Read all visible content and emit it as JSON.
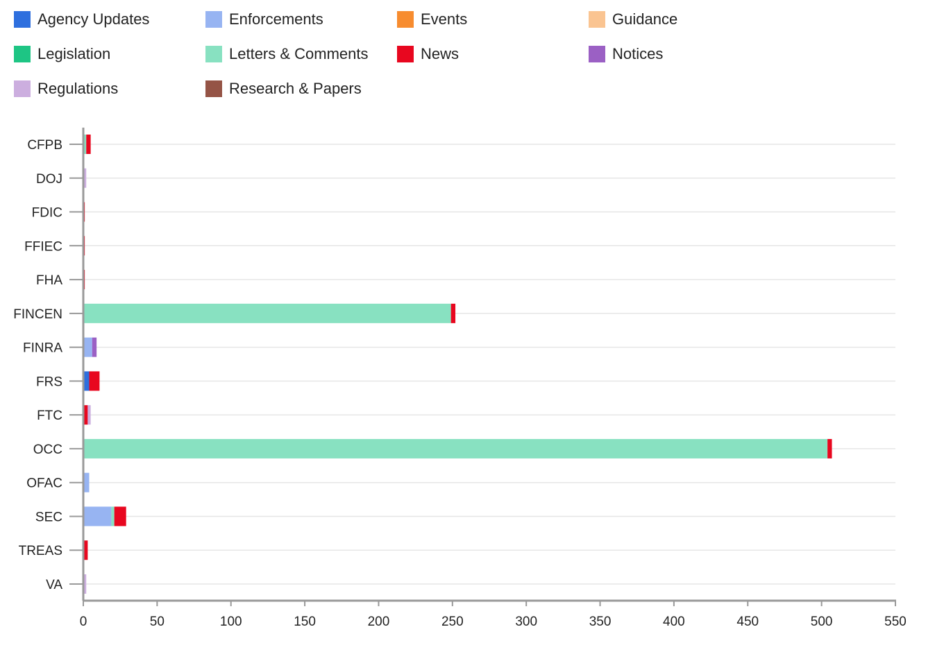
{
  "chart_data": {
    "type": "bar",
    "orientation": "horizontal",
    "stacked": true,
    "categories": [
      "CFPB",
      "DOJ",
      "FDIC",
      "FFIEC",
      "FHA",
      "FINCEN",
      "FINRA",
      "FRS",
      "FTC",
      "OCC",
      "OFAC",
      "SEC",
      "TREAS",
      "VA"
    ],
    "xlim": [
      0,
      550
    ],
    "xticks": [
      0,
      50,
      100,
      150,
      200,
      250,
      300,
      350,
      400,
      450,
      500,
      550
    ],
    "grid": true,
    "legend_position": "top",
    "series": [
      {
        "name": "Agency Updates",
        "color": "#2e6fde",
        "values": [
          0,
          0,
          0,
          0,
          0,
          0,
          0,
          4,
          0,
          0,
          0,
          0,
          0,
          0
        ]
      },
      {
        "name": "Enforcements",
        "color": "#97b4f2",
        "values": [
          0,
          0,
          0,
          0,
          0,
          0,
          6,
          0,
          0,
          0,
          4,
          19,
          0,
          0
        ]
      },
      {
        "name": "Events",
        "color": "#f78c2f",
        "values": [
          0,
          0,
          0,
          0,
          0,
          0,
          0,
          0,
          0,
          0,
          0,
          0,
          0,
          0
        ]
      },
      {
        "name": "Guidance",
        "color": "#fac491",
        "values": [
          0,
          0,
          0,
          0,
          0,
          0,
          0,
          0,
          0,
          0,
          0,
          0,
          0,
          0
        ]
      },
      {
        "name": "Legislation",
        "color": "#1ec584",
        "values": [
          0,
          0,
          0,
          0,
          0,
          0,
          0,
          0,
          0,
          0,
          0,
          0,
          0,
          0
        ]
      },
      {
        "name": "Letters & Comments",
        "color": "#88e1c1",
        "values": [
          2,
          0,
          0,
          0,
          0,
          249,
          0,
          0,
          0,
          504,
          0,
          2,
          0,
          0
        ]
      },
      {
        "name": "News",
        "color": "#e8071f",
        "values": [
          3,
          0,
          1,
          1,
          1,
          3,
          0,
          7,
          3,
          3,
          0,
          8,
          3,
          0
        ]
      },
      {
        "name": "Notices",
        "color": "#9b60c4",
        "values": [
          0,
          0,
          0,
          0,
          0,
          0,
          3,
          0,
          0,
          0,
          0,
          0,
          0,
          0
        ]
      },
      {
        "name": "Regulations",
        "color": "#ccaedf",
        "values": [
          0,
          2,
          0,
          0,
          0,
          0,
          0,
          0,
          2,
          0,
          0,
          0,
          0,
          2
        ]
      },
      {
        "name": "Research & Papers",
        "color": "#955446",
        "values": [
          0,
          0,
          0,
          0,
          0,
          0,
          0,
          0,
          0,
          0,
          0,
          0,
          0,
          0
        ]
      }
    ]
  }
}
